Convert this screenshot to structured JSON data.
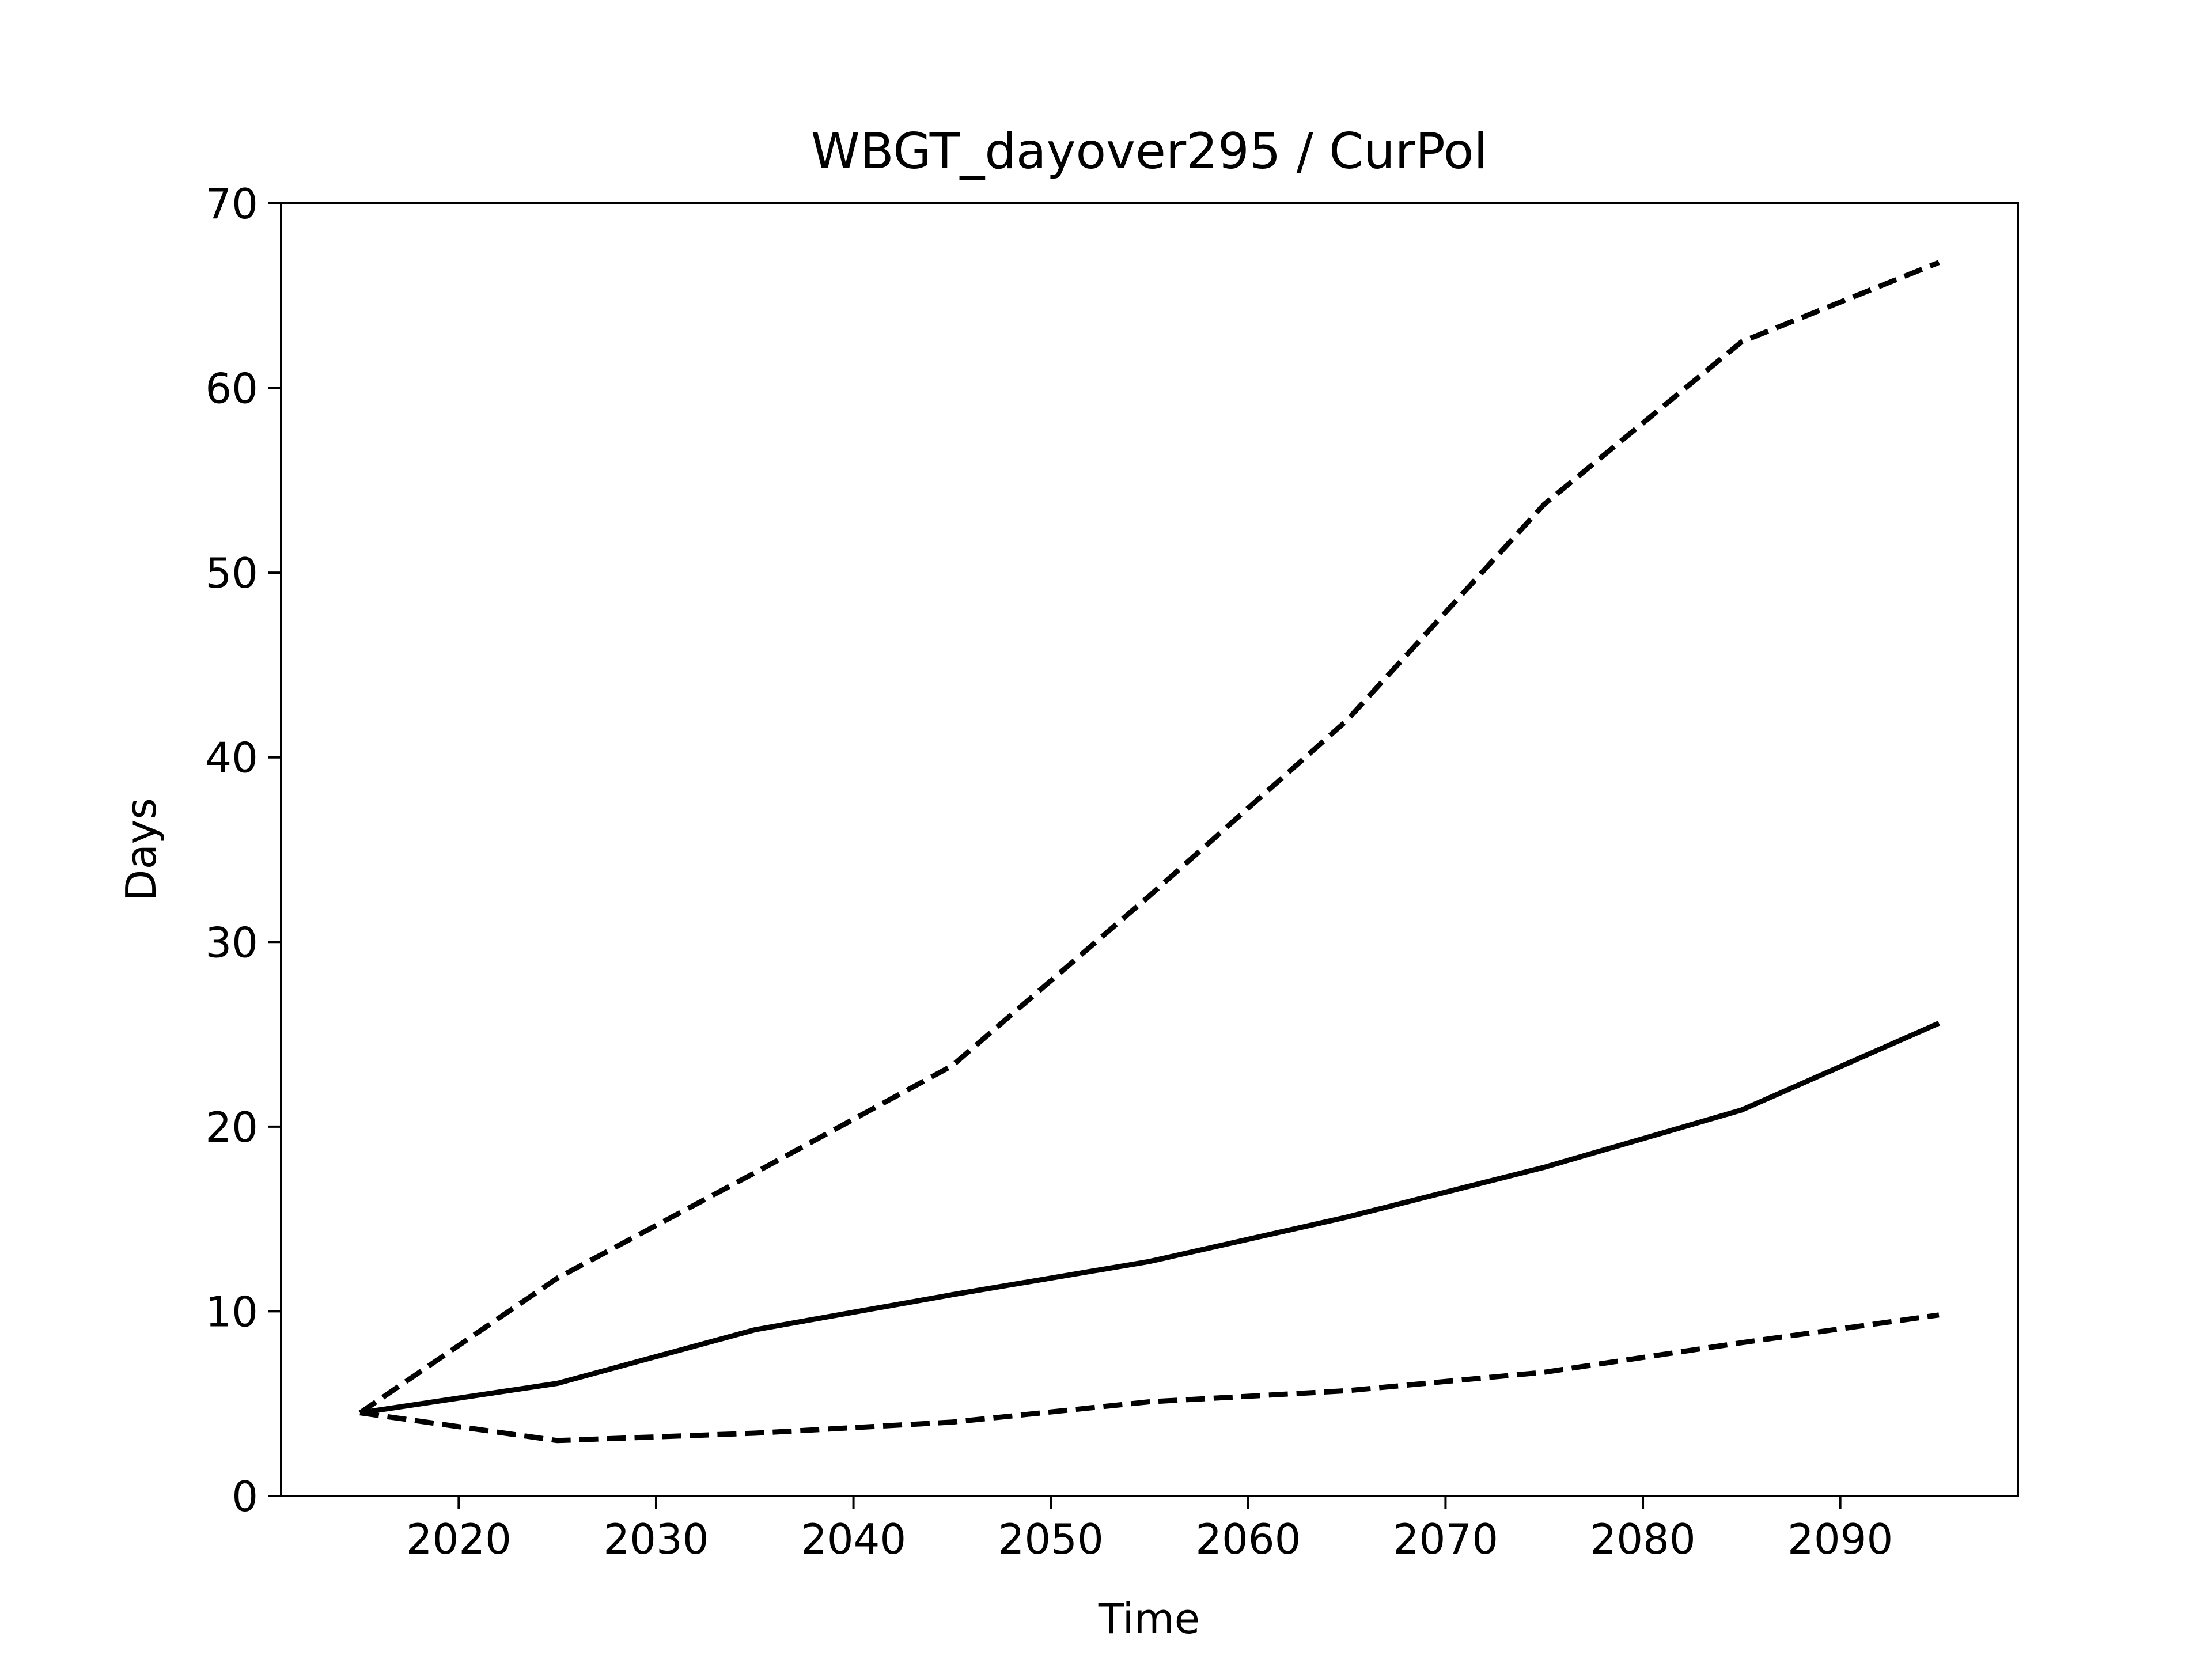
{
  "chart_data": {
    "type": "line",
    "title": "WBGT_dayover295 / CurPol",
    "xlabel": "Time",
    "ylabel": "Days",
    "xlim": [
      2011,
      2099
    ],
    "ylim": [
      0,
      70
    ],
    "xticks": [
      2020,
      2030,
      2040,
      2050,
      2060,
      2070,
      2080,
      2090
    ],
    "yticks": [
      0,
      10,
      20,
      30,
      40,
      50,
      60,
      70
    ],
    "grid": false,
    "legend": "none",
    "x": [
      2015,
      2025,
      2035,
      2045,
      2055,
      2065,
      2075,
      2085,
      2095
    ],
    "series": [
      {
        "style": "dashed",
        "color": "#000000",
        "values": [
          4.5,
          11.8,
          17.5,
          23.3,
          32.5,
          42.0,
          53.7,
          62.5,
          66.8
        ]
      },
      {
        "style": "solid",
        "color": "#000000",
        "values": [
          4.5,
          6.1,
          9.0,
          10.9,
          12.7,
          15.1,
          17.8,
          20.9,
          25.6
        ]
      },
      {
        "style": "dashed",
        "color": "#000000",
        "values": [
          4.5,
          3.0,
          3.4,
          4.0,
          5.1,
          5.7,
          6.7,
          8.3,
          9.8
        ]
      }
    ]
  }
}
